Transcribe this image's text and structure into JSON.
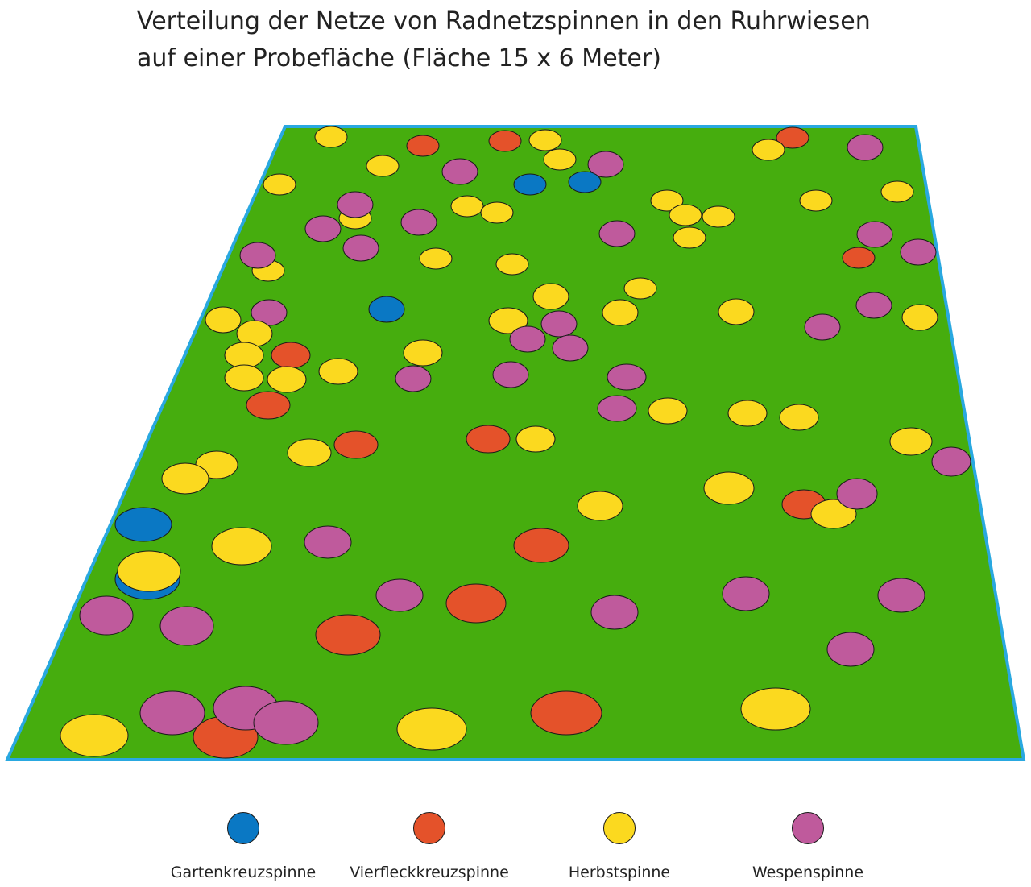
{
  "title": {
    "line1": "Verteilung der Netze von Radnetzspinnen in den Ruhrwiesen",
    "line2": "auf einer Probefläche (Fläche 15 x 6 Meter)"
  },
  "colors": {
    "field": "#46ad0e",
    "border": "#29a8e0",
    "outline": "#1a1a1a"
  },
  "species": [
    {
      "key": "garten",
      "label": "Gartenkreuzspinne",
      "color": "#0a78c4"
    },
    {
      "key": "vierfleck",
      "label": "Vierfleckkreuzspinne",
      "color": "#e4522a"
    },
    {
      "key": "herbst",
      "label": "Herbstspinne",
      "color": "#fbd91f"
    },
    {
      "key": "wespen",
      "label": "Wespenspinne",
      "color": "#bf5a9c"
    }
  ]
}
